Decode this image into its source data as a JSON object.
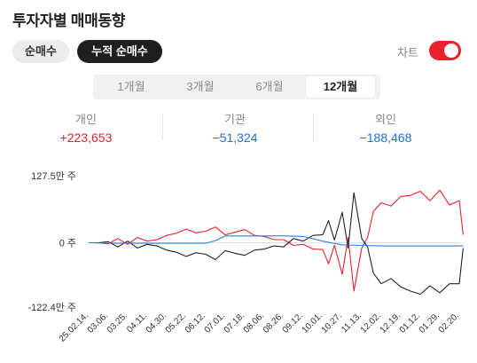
{
  "header": {
    "title": "투자자별 매매동향"
  },
  "mode_tabs": [
    {
      "label": "순매수",
      "active": false
    },
    {
      "label": "누적 순매수",
      "active": true
    }
  ],
  "chart_toggle": {
    "label": "차트",
    "on": true,
    "color": "#e8222b"
  },
  "periods": [
    {
      "label": "1개월",
      "active": false
    },
    {
      "label": "3개월",
      "active": false
    },
    {
      "label": "6개월",
      "active": false
    },
    {
      "label": "12개월",
      "active": true
    }
  ],
  "summary": [
    {
      "label": "개인",
      "value": "+223,653",
      "color": "#e8222b"
    },
    {
      "label": "기관",
      "value": "−51,324",
      "color": "#1f6fd8"
    },
    {
      "label": "외인",
      "value": "−188,468",
      "color": "#1f6fd8"
    }
  ],
  "chart_data": {
    "type": "line",
    "y_tick_labels": [
      "127.5만 주",
      "0 주",
      "-122.4만 주"
    ],
    "ylim": [
      -122.4,
      127.5
    ],
    "x_tick_labels": [
      "25.02.14.",
      "03.06.",
      "03.25.",
      "04.11.",
      "04.30.",
      "05.22.",
      "06.12.",
      "07.01.",
      "07.18.",
      "08.06.",
      "08.26.",
      "09.12.",
      "10.01.",
      "10.27.",
      "11.13.",
      "12.02.",
      "12.19.",
      "01.12.",
      "01.29.",
      "02.20."
    ],
    "series": [
      {
        "color": "#e8222b",
        "x": [
          0,
          0.5,
          1,
          1.5,
          2,
          2.5,
          3,
          3.5,
          4,
          4.5,
          5,
          5.5,
          6,
          6.5,
          7,
          7.5,
          8,
          8.5,
          9,
          9.5,
          10,
          10.5,
          11,
          11.5,
          12,
          12.3,
          12.6,
          13,
          13.3,
          13.6,
          14,
          14.3,
          14.6,
          15,
          15.5,
          16,
          16.5,
          17,
          17.5,
          18,
          18.5,
          19,
          19.2
        ],
        "values": [
          0,
          0,
          -2,
          8,
          -3,
          10,
          3,
          6,
          14,
          18,
          26,
          19,
          22,
          30,
          15,
          20,
          25,
          14,
          12,
          6,
          6,
          -5,
          -3,
          -12,
          -13,
          -40,
          -5,
          -60,
          10,
          -92,
          -10,
          10,
          60,
          76,
          70,
          88,
          90,
          98,
          80,
          100,
          72,
          80,
          15
        ]
      },
      {
        "color": "#222222",
        "x": [
          0,
          0.5,
          1,
          1.5,
          2,
          2.5,
          3,
          3.5,
          4,
          4.5,
          5,
          5.5,
          6,
          6.5,
          7,
          7.5,
          8,
          8.5,
          9,
          9.5,
          10,
          10.5,
          11,
          11.5,
          12,
          12.3,
          12.6,
          13,
          13.3,
          13.6,
          14,
          14.3,
          14.6,
          15,
          15.5,
          16,
          16.5,
          17,
          17.5,
          18,
          18.5,
          19,
          19.2
        ],
        "values": [
          0,
          0,
          2,
          -8,
          3,
          -10,
          -3,
          -6,
          -14,
          -18,
          -26,
          -19,
          -22,
          -32,
          -15,
          -20,
          -24,
          -14,
          -12,
          -6,
          -8,
          8,
          3,
          14,
          15,
          42,
          5,
          58,
          -10,
          95,
          8,
          -8,
          -58,
          -78,
          -68,
          -84,
          -92,
          -98,
          -82,
          -95,
          -78,
          -78,
          -10
        ]
      },
      {
        "color": "#2f7fd8",
        "x": [
          0,
          1,
          2,
          3,
          4,
          5,
          6,
          6.5,
          7,
          8,
          9,
          10,
          11,
          12,
          13,
          14,
          15,
          16,
          17,
          18,
          19,
          19.2
        ],
        "values": [
          0,
          -1,
          -1,
          -1,
          -1,
          -1,
          -1,
          4,
          13,
          13,
          13,
          13,
          12,
          3,
          -4,
          -5,
          -6,
          -6,
          -6,
          -6,
          -6,
          -6
        ]
      }
    ]
  }
}
